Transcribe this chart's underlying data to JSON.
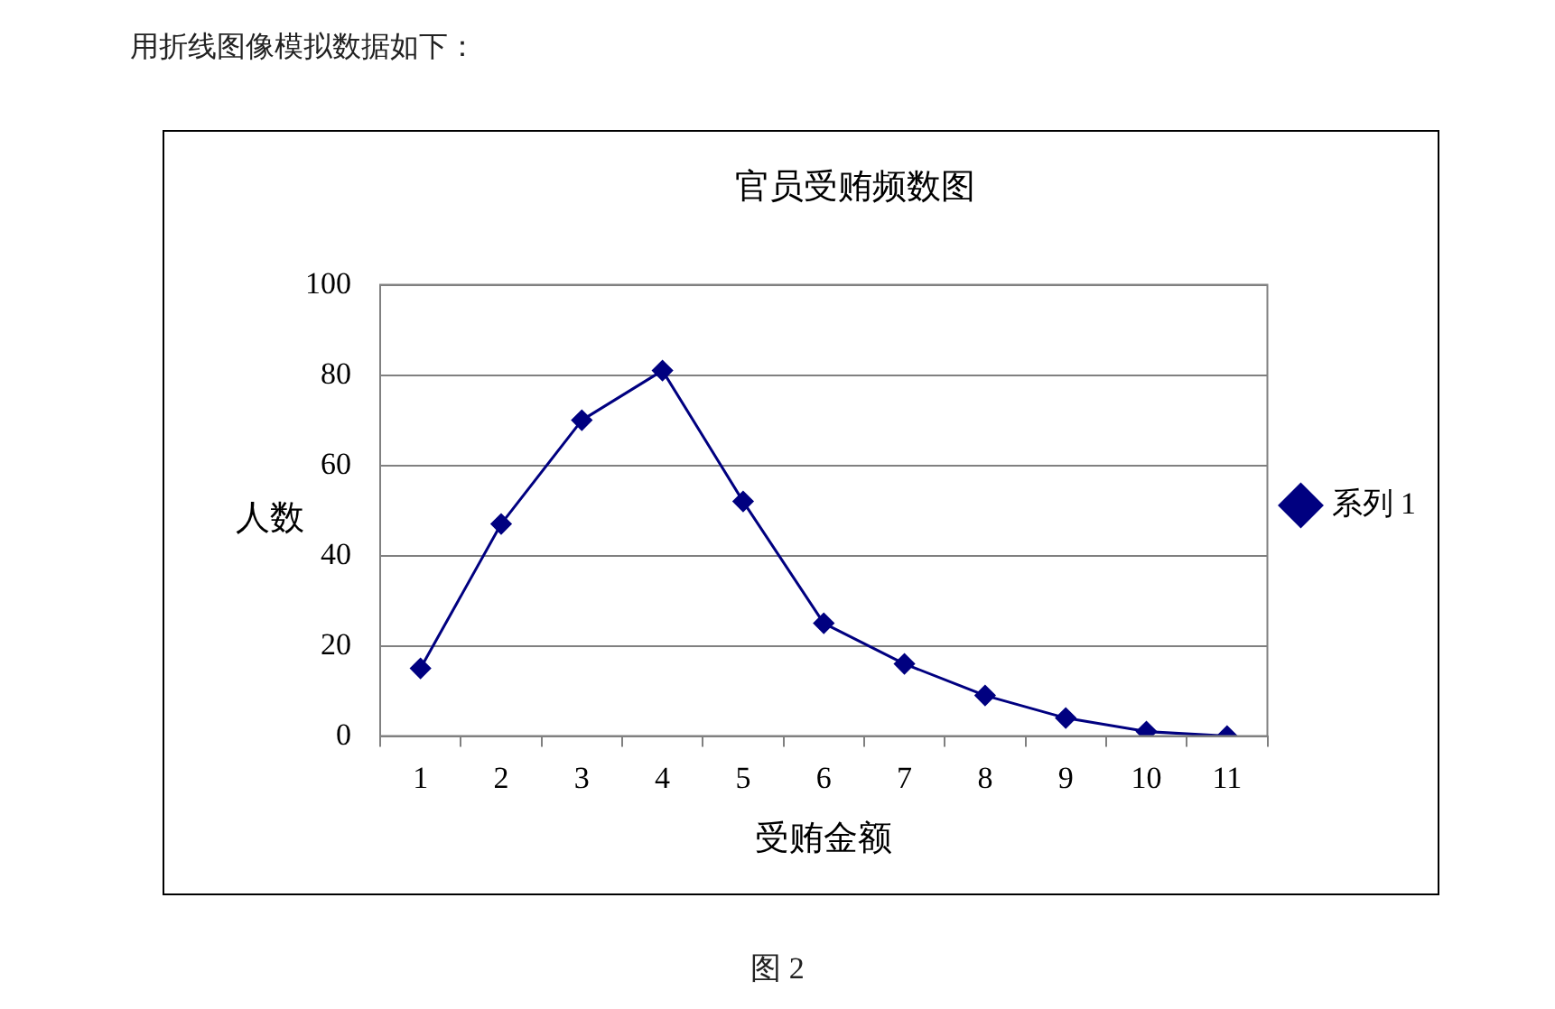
{
  "chart_data": {
    "type": "line",
    "title": "官员受贿频数图",
    "xlabel": "受贿金额",
    "ylabel": "人数",
    "categories": [
      "1",
      "2",
      "3",
      "4",
      "5",
      "6",
      "7",
      "8",
      "9",
      "10",
      "11"
    ],
    "series": [
      {
        "name": "系列 1",
        "color": "#000080",
        "values": [
          15,
          47,
          70,
          81,
          52,
          25,
          16,
          9,
          4,
          1,
          0
        ]
      }
    ],
    "ylim": [
      0,
      100
    ],
    "yticks": [
      0,
      20,
      40,
      60,
      80,
      100
    ],
    "grid": "y",
    "legend": "right",
    "marker": "diamond",
    "line_style": "solid",
    "annotations": [
      "用折线图像模拟数据如下：",
      "图 2"
    ]
  }
}
